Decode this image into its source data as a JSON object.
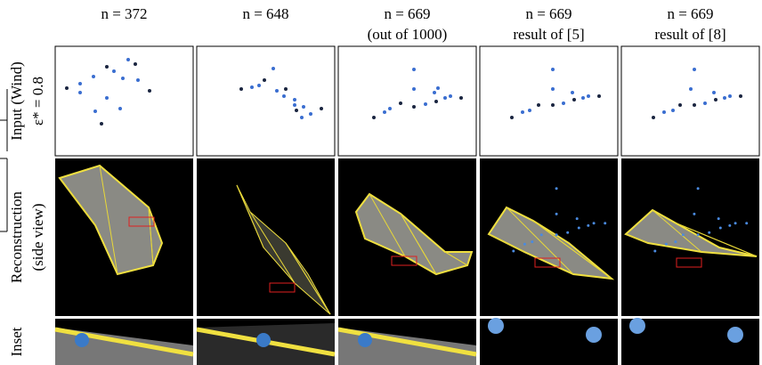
{
  "columns": [
    {
      "header": [
        "n = 372"
      ]
    },
    {
      "header": [
        "n = 648"
      ]
    },
    {
      "header": [
        "n = 669",
        "(out of 1000)"
      ]
    },
    {
      "header": [
        "n = 669",
        "result of [5]"
      ]
    },
    {
      "header": [
        "n = 669",
        "result of [8]"
      ]
    }
  ],
  "rows": [
    {
      "label": [
        "Input (Wind)",
        "ε* = 0.8"
      ]
    },
    {
      "label": [
        "Reconstruction",
        "(side view)"
      ]
    },
    {
      "label": [
        "Inset"
      ]
    }
  ]
}
